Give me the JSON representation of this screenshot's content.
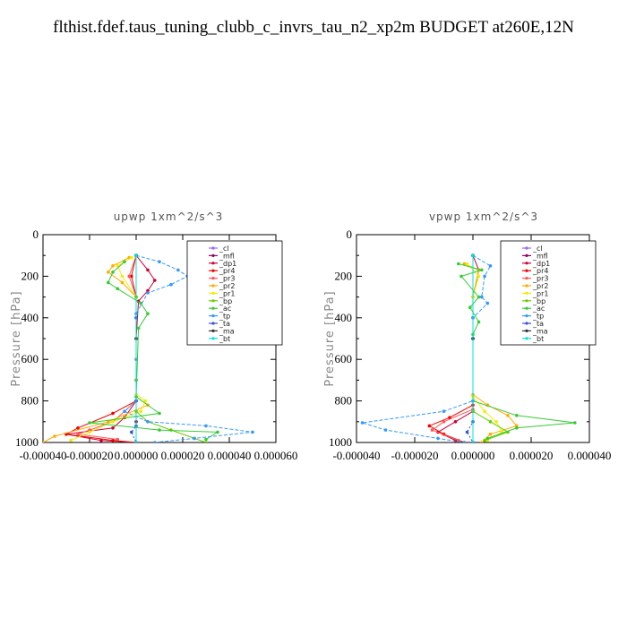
{
  "title": "flthist.fdef.taus_tuning_clubb_c_invrs_tau_n2_xp2m  BUDGET at260E,12N",
  "series_styles": [
    {
      "name": "_cl",
      "color": "#9966ff"
    },
    {
      "name": "_mfl",
      "color": "#990066"
    },
    {
      "name": "_dp1",
      "color": "#cc0033"
    },
    {
      "name": "_pr4",
      "color": "#ee0000"
    },
    {
      "name": "_pr3",
      "color": "#ff5555"
    },
    {
      "name": "_pr2",
      "color": "#ffaa00"
    },
    {
      "name": "_pr1",
      "color": "#eeee00"
    },
    {
      "name": "_bp",
      "color": "#66cc00"
    },
    {
      "name": "_ac",
      "color": "#33cc33"
    },
    {
      "name": "_tp",
      "color": "#3399ff"
    },
    {
      "name": "_ta",
      "color": "#3355dd"
    },
    {
      "name": "_ma",
      "color": "#333333"
    },
    {
      "name": "_bt",
      "color": "#00e0e0"
    }
  ],
  "chart_data": [
    {
      "type": "line",
      "title": "upwp   1xm^2/s^3",
      "ylabel": "Pressure [hPa]",
      "xlim": [
        -4e-05,
        6e-05
      ],
      "ylim": [
        1000,
        0
      ],
      "xticks": [
        "-0.000040",
        "-0.000020",
        "0.000000",
        "0.000020",
        "0.000040",
        "0.000060"
      ],
      "yticks": [
        "0",
        "200",
        "400",
        "600",
        "800",
        "1000"
      ],
      "legend_position": "top-right",
      "series": [
        {
          "name": "_cl",
          "points": [
            [
              0,
              100
            ],
            [
              0,
              300
            ],
            [
              0,
              600
            ],
            [
              0,
              900
            ],
            [
              0,
              1000
            ]
          ]
        },
        {
          "name": "_mfl",
          "points": [
            [
              0,
              100
            ],
            [
              0,
              400
            ],
            [
              0,
              700
            ],
            [
              0,
              900
            ],
            [
              0,
              1000
            ]
          ]
        },
        {
          "name": "_dp1",
          "points": [
            [
              0,
              100
            ],
            [
              5e-06,
              170
            ],
            [
              8e-06,
              220
            ],
            [
              5e-06,
              270
            ],
            [
              1e-06,
              320
            ],
            [
              0,
              500
            ],
            [
              0,
              800
            ],
            [
              -5e-06,
              880
            ],
            [
              -1e-05,
              930
            ],
            [
              -3e-05,
              960
            ],
            [
              -1.5e-05,
              990
            ],
            [
              0,
              1000
            ]
          ]
        },
        {
          "name": "_pr4",
          "points": [
            [
              0,
              100
            ],
            [
              -2e-06,
              200
            ],
            [
              0,
              300
            ],
            [
              0,
              800
            ],
            [
              -1e-05,
              860
            ],
            [
              -2.5e-05,
              930
            ],
            [
              -3e-05,
              960
            ],
            [
              -1e-05,
              990
            ],
            [
              0,
              1000
            ]
          ]
        },
        {
          "name": "_pr3",
          "points": [
            [
              0,
              100
            ],
            [
              -3e-06,
              200
            ],
            [
              0,
              300
            ],
            [
              0,
              800
            ],
            [
              -1e-05,
              900
            ],
            [
              -2e-05,
              940
            ],
            [
              -2.5e-05,
              960
            ],
            [
              -8e-06,
              985
            ]
          ]
        },
        {
          "name": "_pr2",
          "points": [
            [
              -3e-06,
              110
            ],
            [
              -1e-05,
              150
            ],
            [
              -1.2e-05,
              180
            ],
            [
              -6e-06,
              230
            ],
            [
              0,
              300
            ],
            [
              0,
              780
            ],
            [
              5e-06,
              820
            ],
            [
              -1.2e-05,
              900
            ],
            [
              -3.5e-05,
              970
            ],
            [
              -4e-05,
              1000
            ]
          ]
        },
        {
          "name": "_pr1",
          "points": [
            [
              -2e-06,
              110
            ],
            [
              -8e-06,
              150
            ],
            [
              -6e-06,
              200
            ],
            [
              0,
              300
            ],
            [
              0,
              770
            ],
            [
              4e-06,
              800
            ],
            [
              2e-06,
              850
            ],
            [
              -1e-05,
              900
            ],
            [
              -2e-05,
              950
            ],
            [
              -2.8e-05,
              990
            ]
          ]
        },
        {
          "name": "_bp",
          "points": [
            [
              0,
              100
            ],
            [
              0,
              300
            ],
            [
              0,
              700
            ],
            [
              0,
              850
            ],
            [
              5e-06,
              900
            ],
            [
              1.5e-05,
              940
            ],
            [
              2.5e-05,
              980
            ],
            [
              3e-05,
              1000
            ]
          ]
        },
        {
          "name": "_ac",
          "points": [
            [
              -5e-06,
              130
            ],
            [
              -1e-05,
              180
            ],
            [
              -1.2e-05,
              230
            ],
            [
              -8e-06,
              260
            ],
            [
              2e-06,
              330
            ],
            [
              5e-06,
              380
            ],
            [
              1e-06,
              450
            ],
            [
              0,
              780
            ],
            [
              1e-05,
              860
            ],
            [
              -2e-05,
              905
            ],
            [
              1e-05,
              940
            ],
            [
              3.5e-05,
              950
            ],
            [
              3e-05,
              985
            ]
          ]
        },
        {
          "name": "_tp",
          "points": [
            [
              0,
              100
            ],
            [
              1e-05,
              130
            ],
            [
              1.8e-05,
              170
            ],
            [
              2.2e-05,
              200
            ],
            [
              1.5e-05,
              240
            ],
            [
              5e-06,
              280
            ],
            [
              0,
              380
            ],
            [
              0,
              800
            ],
            [
              -5e-06,
              850
            ],
            [
              5e-06,
              900
            ],
            [
              3e-05,
              920
            ],
            [
              5e-05,
              950
            ],
            [
              2.5e-05,
              980
            ],
            [
              8e-06,
              1000
            ]
          ]
        },
        {
          "name": "_ta",
          "points": [
            [
              0,
              100
            ],
            [
              0,
              400
            ],
            [
              0,
              800
            ],
            [
              0,
              920
            ],
            [
              -2e-06,
              950
            ],
            [
              0,
              1000
            ]
          ]
        },
        {
          "name": "_ma",
          "points": [
            [
              0,
              100
            ],
            [
              0,
              500
            ],
            [
              0,
              1000
            ]
          ]
        },
        {
          "name": "_bt",
          "points": [
            [
              0,
              100
            ],
            [
              0,
              1000
            ]
          ]
        }
      ]
    },
    {
      "type": "line",
      "title": "vpwp   1xm^2/s^3",
      "ylabel": "Pressure [hPa]",
      "xlim": [
        -4e-05,
        4e-05
      ],
      "ylim": [
        1000,
        0
      ],
      "xticks": [
        "-0.000040",
        "-0.000020",
        "0.000000",
        "0.000020",
        "0.000040"
      ],
      "yticks": [
        "0",
        "200",
        "400",
        "600",
        "800",
        "1000"
      ],
      "legend_position": "top-right",
      "series": [
        {
          "name": "_cl",
          "points": [
            [
              0,
              100
            ],
            [
              0,
              500
            ],
            [
              0,
              1000
            ]
          ]
        },
        {
          "name": "_mfl",
          "points": [
            [
              0,
              100
            ],
            [
              0,
              500
            ],
            [
              0,
              1000
            ]
          ]
        },
        {
          "name": "_dp1",
          "points": [
            [
              0,
              100
            ],
            [
              2e-06,
              170
            ],
            [
              0,
              300
            ],
            [
              0,
              850
            ],
            [
              -6e-06,
              900
            ],
            [
              -1.2e-05,
              950
            ],
            [
              -6e-06,
              990
            ]
          ]
        },
        {
          "name": "_pr4",
          "points": [
            [
              0,
              100
            ],
            [
              0,
              400
            ],
            [
              0,
              820
            ],
            [
              -8e-06,
              880
            ],
            [
              -1.5e-05,
              920
            ],
            [
              -1e-05,
              960
            ],
            [
              -3e-06,
              1000
            ]
          ]
        },
        {
          "name": "_pr3",
          "points": [
            [
              0,
              100
            ],
            [
              0,
              400
            ],
            [
              0,
              840
            ],
            [
              -1e-05,
              900
            ],
            [
              -1.4e-05,
              940
            ],
            [
              -5e-06,
              990
            ]
          ]
        },
        {
          "name": "_pr2",
          "points": [
            [
              -3e-06,
              140
            ],
            [
              2e-06,
              170
            ],
            [
              0,
              300
            ],
            [
              0,
              770
            ],
            [
              5e-06,
              820
            ],
            [
              1.2e-05,
              870
            ],
            [
              1.5e-05,
              920
            ],
            [
              6e-06,
              960
            ],
            [
              3e-06,
              1000
            ]
          ]
        },
        {
          "name": "_pr1",
          "points": [
            [
              -2e-06,
              140
            ],
            [
              2e-06,
              200
            ],
            [
              0,
              300
            ],
            [
              0,
              780
            ],
            [
              4e-06,
              850
            ],
            [
              8e-06,
              900
            ],
            [
              1e-05,
              950
            ],
            [
              5e-06,
              990
            ]
          ]
        },
        {
          "name": "_bp",
          "points": [
            [
              0,
              100
            ],
            [
              0,
              500
            ],
            [
              0,
              850
            ],
            [
              6e-06,
              900
            ],
            [
              1.2e-05,
              950
            ],
            [
              4e-06,
              990
            ]
          ]
        },
        {
          "name": "_ac",
          "points": [
            [
              -5e-06,
              140
            ],
            [
              3e-06,
              170
            ],
            [
              -4e-06,
              200
            ],
            [
              2e-06,
              300
            ],
            [
              -1e-06,
              350
            ],
            [
              2e-06,
              420
            ],
            [
              0,
              480
            ],
            [
              0,
              800
            ],
            [
              1.5e-05,
              870
            ],
            [
              3.5e-05,
              905
            ],
            [
              1.5e-05,
              930
            ],
            [
              5e-06,
              980
            ]
          ]
        },
        {
          "name": "_tp",
          "points": [
            [
              0,
              100
            ],
            [
              6e-06,
              150
            ],
            [
              4e-06,
              200
            ],
            [
              3e-06,
              300
            ],
            [
              5e-06,
              330
            ],
            [
              0,
              400
            ],
            [
              0,
              800
            ],
            [
              -1e-05,
              850
            ],
            [
              -3.8e-05,
              905
            ],
            [
              -3e-05,
              940
            ],
            [
              -1.2e-05,
              980
            ],
            [
              -3e-06,
              1000
            ]
          ]
        },
        {
          "name": "_ta",
          "points": [
            [
              0,
              100
            ],
            [
              0,
              500
            ],
            [
              0,
              900
            ],
            [
              -2e-06,
              950
            ],
            [
              0,
              1000
            ]
          ]
        },
        {
          "name": "_ma",
          "points": [
            [
              0,
              100
            ],
            [
              0,
              500
            ],
            [
              0,
              1000
            ]
          ]
        },
        {
          "name": "_bt",
          "points": [
            [
              0,
              100
            ],
            [
              0,
              1000
            ]
          ]
        }
      ]
    }
  ]
}
